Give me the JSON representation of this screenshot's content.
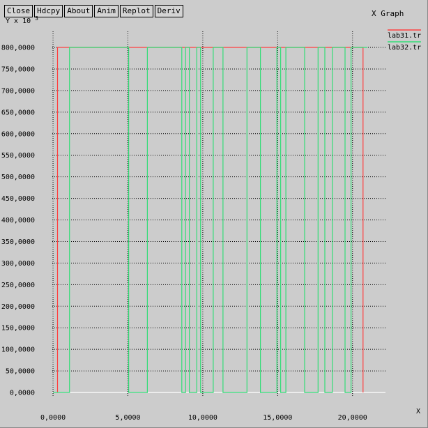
{
  "window": {
    "title": "X Graph",
    "buttons": [
      "Close",
      "Hdcpy",
      "About",
      "Anim",
      "Replot",
      "Deriv"
    ]
  },
  "chart_data": {
    "type": "line",
    "title": "",
    "ylabel": "Y x 10",
    "ylabel_exponent": "3",
    "xlabel": "X",
    "xlim": [
      -0.05,
      22.2
    ],
    "ylim": [
      0,
      800
    ],
    "x_ticks": [
      0,
      5,
      10,
      15,
      20
    ],
    "x_tick_labels": [
      "0,0000",
      "5,0000",
      "10,0000",
      "15,0000",
      "20,0000"
    ],
    "y_ticks": [
      0,
      50,
      100,
      150,
      200,
      250,
      300,
      350,
      400,
      450,
      500,
      550,
      600,
      650,
      700,
      750,
      800
    ],
    "y_tick_labels": [
      "0,0000",
      "50,0000",
      "100,0000",
      "150,0000",
      "200,0000",
      "250,0000",
      "300,0000",
      "350,0000",
      "400,0000",
      "450,0000",
      "500,0000",
      "550,0000",
      "600,0000",
      "650,0000",
      "700,0000",
      "750,0000",
      "800,0000"
    ],
    "grid": "major lines dotted",
    "legend_position": "top-right",
    "series": [
      {
        "name": "lab31.tr",
        "color": "#ff4040",
        "x": [
          0.3,
          0.3,
          20.7,
          20.7
        ],
        "y": [
          0,
          800,
          800,
          0
        ]
      },
      {
        "name": "lab32.tr",
        "color": "#33dd77",
        "x": [
          0.0,
          1.1,
          1.1,
          5.05,
          5.05,
          6.3,
          6.3,
          8.6,
          8.6,
          8.85,
          8.85,
          9.1,
          9.1,
          9.6,
          9.6,
          9.85,
          9.85,
          10.7,
          10.7,
          11.35,
          11.35,
          12.95,
          12.95,
          13.85,
          13.85,
          14.95,
          14.95,
          15.2,
          15.2,
          15.55,
          15.55,
          16.8,
          16.8,
          17.7,
          17.7,
          18.15,
          18.15,
          18.65,
          18.65,
          19.5,
          19.5,
          19.9,
          19.9,
          21.0
        ],
        "y": [
          0,
          0,
          800,
          800,
          0,
          0,
          800,
          800,
          0,
          0,
          800,
          800,
          0,
          0,
          800,
          800,
          0,
          0,
          800,
          800,
          0,
          0,
          800,
          800,
          0,
          0,
          800,
          800,
          0,
          0,
          800,
          800,
          0,
          0,
          800,
          800,
          0,
          0,
          800,
          800,
          0,
          0,
          800,
          800
        ]
      }
    ]
  }
}
